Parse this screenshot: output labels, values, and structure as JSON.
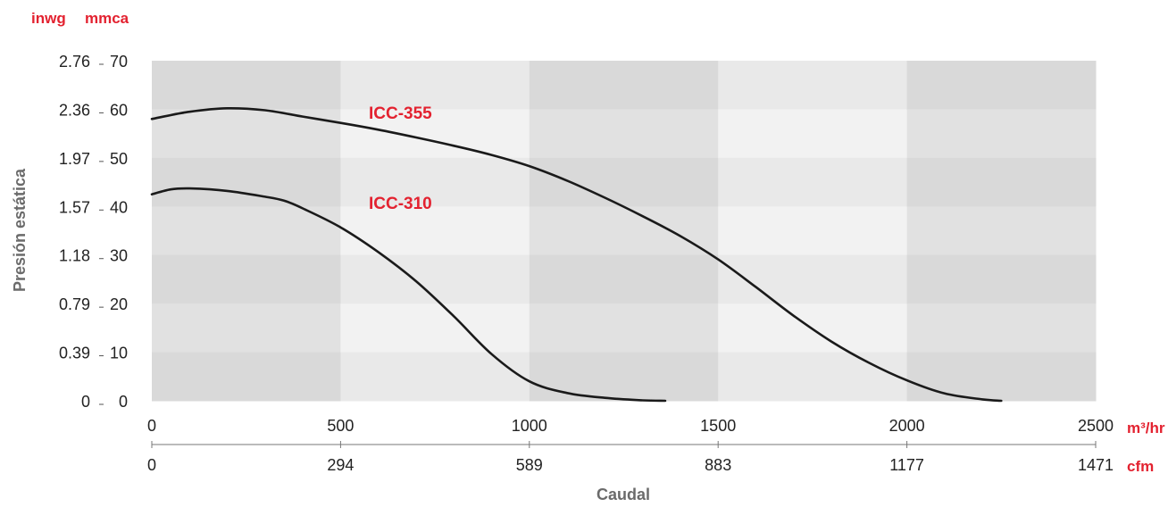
{
  "chart_data": {
    "type": "line",
    "xlabel": "Caudal",
    "ylabel": "Presión estática",
    "x_unit_primary": "m³/hr",
    "x_unit_secondary": "cfm",
    "y_unit_left": "inwg",
    "y_unit_right": "mmca",
    "xlim": [
      0,
      2500
    ],
    "ylim": [
      0,
      70
    ],
    "x_ticks": [
      "0",
      "500",
      "1000",
      "1500",
      "2000",
      "2500"
    ],
    "x_ticks_secondary": [
      "0",
      "294",
      "589",
      "883",
      "1177",
      "1471"
    ],
    "y_ticks_mmca": [
      "0",
      "10",
      "20",
      "30",
      "40",
      "50",
      "60",
      "70"
    ],
    "y_ticks_inwg": [
      "0",
      "0.39",
      "0.79",
      "1.18",
      "1.57",
      "1.97",
      "2.36",
      "2.76"
    ],
    "series": [
      {
        "name": "ICC-355",
        "color": "#1a1a1a",
        "x": [
          0,
          100,
          200,
          300,
          400,
          500,
          600,
          700,
          800,
          900,
          1000,
          1100,
          1200,
          1300,
          1400,
          1500,
          1600,
          1700,
          1800,
          1900,
          2000,
          2100,
          2200,
          2250
        ],
        "y": [
          58,
          59.5,
          60.2,
          59.8,
          58.5,
          57.2,
          55.8,
          54.2,
          52.5,
          50.6,
          48.3,
          45.3,
          41.8,
          38.0,
          33.9,
          29.1,
          23.4,
          17.5,
          12.2,
          7.8,
          4.2,
          1.5,
          0.3,
          0
        ]
      },
      {
        "name": "ICC-310",
        "color": "#1a1a1a",
        "x": [
          0,
          50,
          100,
          200,
          300,
          350,
          400,
          500,
          600,
          700,
          800,
          900,
          1000,
          1100,
          1200,
          1300,
          1360
        ],
        "y": [
          42.5,
          43.5,
          43.7,
          43.2,
          42.0,
          41.2,
          39.6,
          35.7,
          30.6,
          24.6,
          17.4,
          9.6,
          4.0,
          1.6,
          0.6,
          0.1,
          0
        ]
      }
    ],
    "grid": true,
    "background_bands": true,
    "legend": "inline labels"
  }
}
